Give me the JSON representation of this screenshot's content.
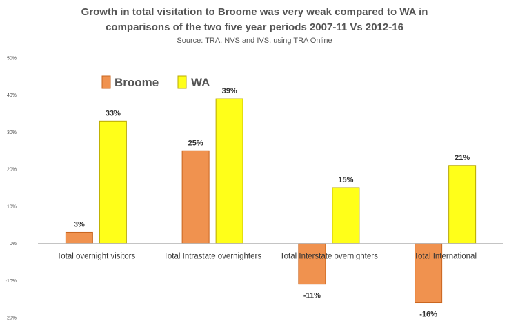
{
  "chart_data": {
    "type": "bar",
    "title_lines": [
      "Growth in total visitation to Broome was very weak compared to WA in",
      "comparisons of the two five year periods 2007-11 Vs 2012-16"
    ],
    "subtitle": "Source: TRA, NVS and IVS, using TRA Online",
    "categories": [
      "Total overnight visitors",
      "Total Intrastate overnighters",
      "Total Interstate overnighters",
      "Total International"
    ],
    "series": [
      {
        "name": "Broome",
        "color": "#F0924F",
        "values": [
          3,
          25,
          -11,
          -16
        ],
        "labels": [
          "3%",
          "25%",
          "-11%",
          "-16%"
        ]
      },
      {
        "name": "WA",
        "color": "#FFFF19",
        "values": [
          33,
          39,
          15,
          21
        ],
        "labels": [
          "33%",
          "39%",
          "15%",
          "21%"
        ]
      }
    ],
    "ylim": [
      -20,
      50
    ],
    "yticks": [
      50,
      40,
      30,
      20,
      10,
      0,
      -10,
      -20
    ],
    "ytick_labels": [
      "50%",
      "40%",
      "30%",
      "20%",
      "10%",
      "0%",
      "-10%",
      "-20%"
    ],
    "grid": false,
    "legend_position": "top-left"
  }
}
